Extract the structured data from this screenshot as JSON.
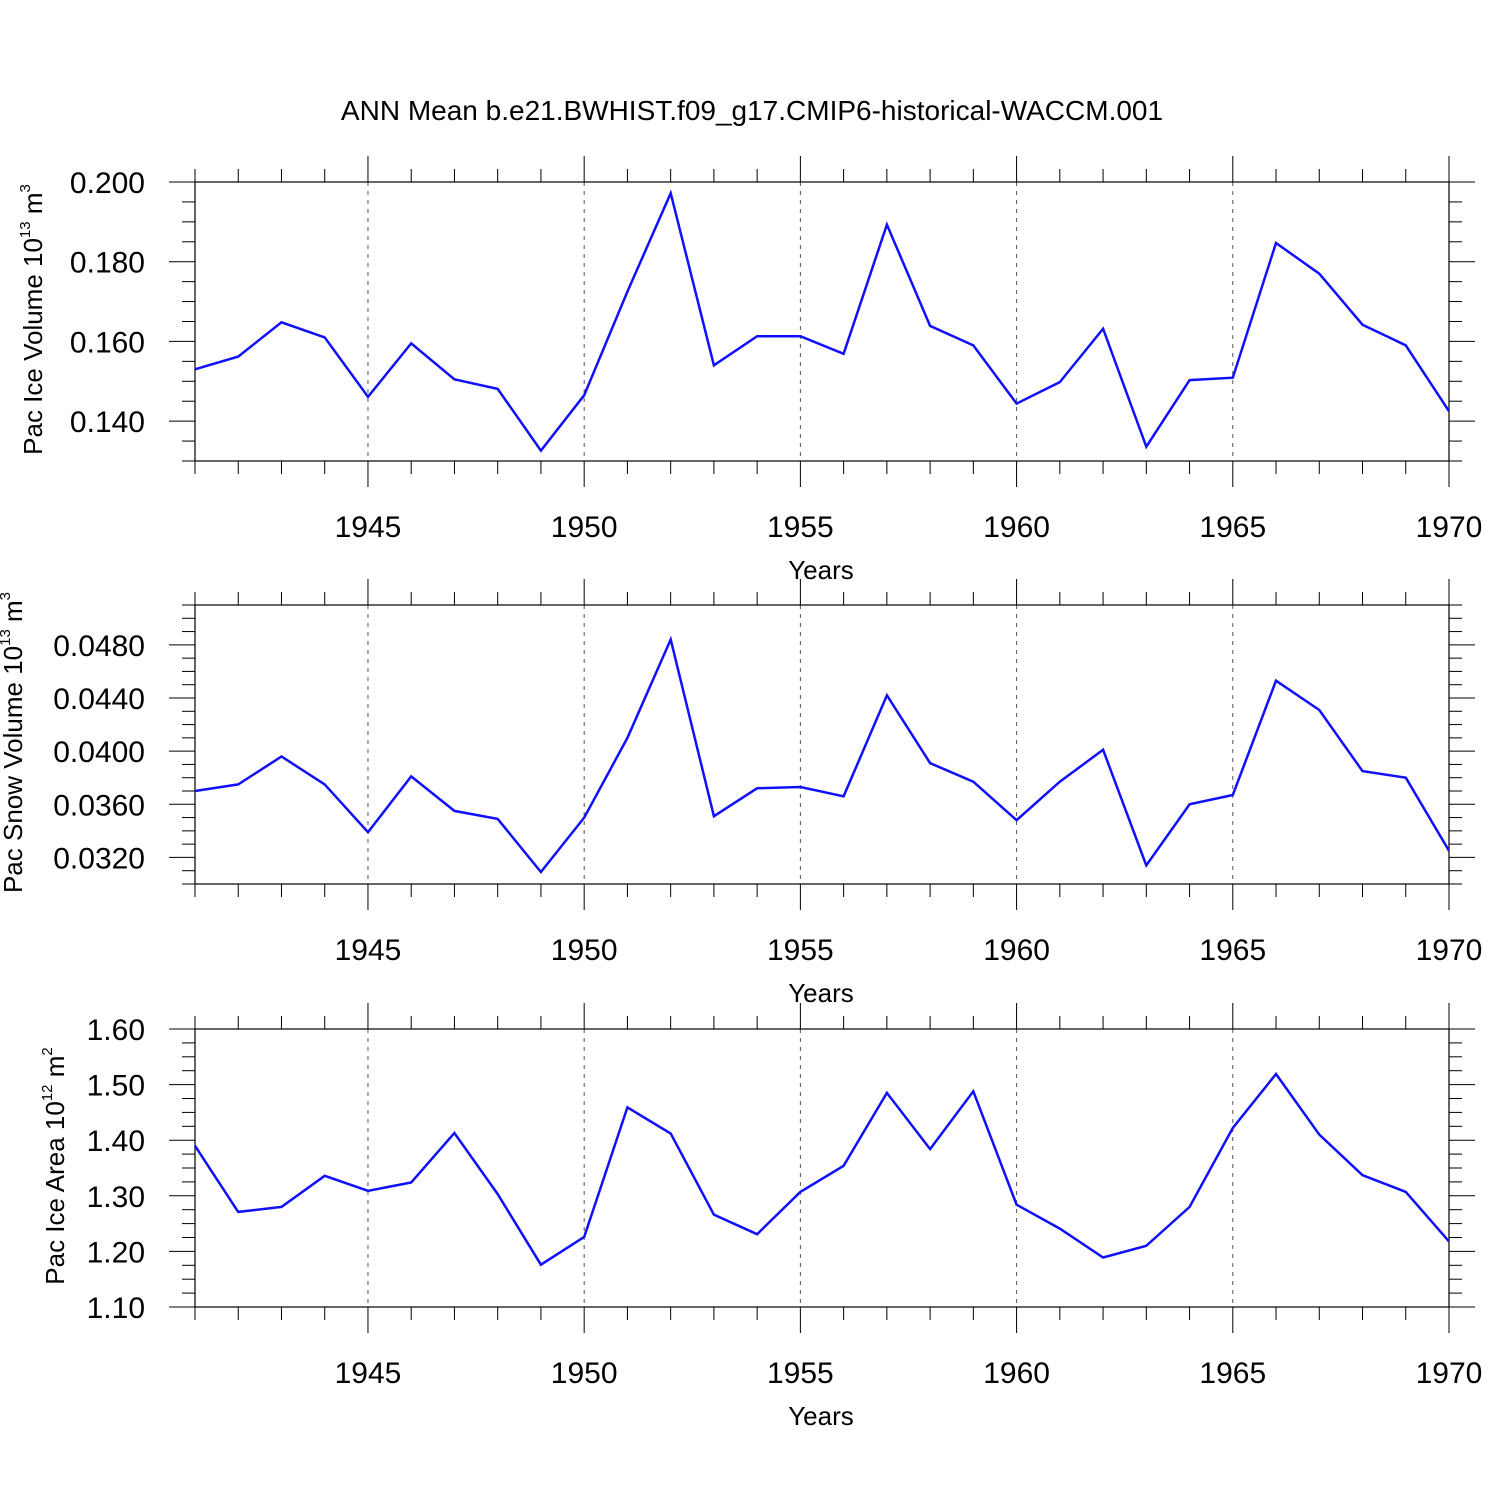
{
  "title": "ANN Mean b.e21.BWHIST.f09_g17.CMIP6-historical-WACCM.001",
  "colors": {
    "line": "#1010ff",
    "axis": "#000000",
    "grid": "#555555"
  },
  "chart_data": [
    {
      "type": "line",
      "ylabel": {
        "text": "Pac Ice Volume 10",
        "sup": "13",
        "unit": " m",
        "unit_sup": "3"
      },
      "xlabel": "Years",
      "xlim": [
        1941,
        1970
      ],
      "ylim": [
        0.13,
        0.2
      ],
      "yticks": [
        0.14,
        0.16,
        0.18,
        0.2
      ],
      "ytick_labels": [
        "0.140",
        "0.160",
        "0.180",
        "0.200"
      ],
      "xticks": [
        1945,
        1950,
        1955,
        1960,
        1965,
        1970
      ],
      "xtick_labels": [
        "1945",
        "1950",
        "1955",
        "1960",
        "1965",
        "1970"
      ],
      "grid_x": [
        1945,
        1950,
        1955,
        1960,
        1965
      ],
      "x": [
        1941,
        1942,
        1943,
        1944,
        1945,
        1946,
        1947,
        1948,
        1949,
        1950,
        1951,
        1952,
        1953,
        1954,
        1955,
        1956,
        1957,
        1958,
        1959,
        1960,
        1961,
        1962,
        1963,
        1964,
        1965,
        1966,
        1967,
        1968,
        1969,
        1970
      ],
      "values": [
        0.153,
        0.1562,
        0.1648,
        0.161,
        0.1461,
        0.1595,
        0.1505,
        0.1481,
        0.1326,
        0.1465,
        0.1725,
        0.1972,
        0.154,
        0.1613,
        0.1613,
        0.1569,
        0.1893,
        0.1639,
        0.159,
        0.1444,
        0.1498,
        0.1632,
        0.1336,
        0.1503,
        0.1509,
        0.1847,
        0.177,
        0.1642,
        0.159,
        0.1425
      ]
    },
    {
      "type": "line",
      "ylabel": {
        "text": "Pac Snow Volume 10",
        "sup": "13",
        "unit": " m",
        "unit_sup": "3"
      },
      "xlabel": "Years",
      "xlim": [
        1941,
        1970
      ],
      "ylim": [
        0.03,
        0.051
      ],
      "yticks": [
        0.032,
        0.036,
        0.04,
        0.044,
        0.048
      ],
      "ytick_labels": [
        "0.0320",
        "0.0360",
        "0.0400",
        "0.0440",
        "0.0480"
      ],
      "xticks": [
        1945,
        1950,
        1955,
        1960,
        1965,
        1970
      ],
      "xtick_labels": [
        "1945",
        "1950",
        "1955",
        "1960",
        "1965",
        "1970"
      ],
      "grid_x": [
        1945,
        1950,
        1955,
        1960,
        1965
      ],
      "x": [
        1941,
        1942,
        1943,
        1944,
        1945,
        1946,
        1947,
        1948,
        1949,
        1950,
        1951,
        1952,
        1953,
        1954,
        1955,
        1956,
        1957,
        1958,
        1959,
        1960,
        1961,
        1962,
        1963,
        1964,
        1965,
        1966,
        1967,
        1968,
        1969,
        1970
      ],
      "values": [
        0.037,
        0.0375,
        0.0396,
        0.0375,
        0.0339,
        0.0381,
        0.0355,
        0.0349,
        0.0309,
        0.035,
        0.041,
        0.0484,
        0.0351,
        0.0372,
        0.0373,
        0.0366,
        0.0442,
        0.0391,
        0.0377,
        0.0348,
        0.0377,
        0.0401,
        0.0314,
        0.036,
        0.0367,
        0.0453,
        0.0431,
        0.0385,
        0.038,
        0.0325
      ]
    },
    {
      "type": "line",
      "ylabel": {
        "text": "Pac Ice Area 10",
        "sup": "12",
        "unit": " m",
        "unit_sup": "2"
      },
      "xlabel": "Years",
      "xlim": [
        1941,
        1970
      ],
      "ylim": [
        1.1,
        1.6
      ],
      "yticks": [
        1.1,
        1.2,
        1.3,
        1.4,
        1.5,
        1.6
      ],
      "ytick_labels": [
        "1.10",
        "1.20",
        "1.30",
        "1.40",
        "1.50",
        "1.60"
      ],
      "xticks": [
        1945,
        1950,
        1955,
        1960,
        1965,
        1970
      ],
      "xtick_labels": [
        "1945",
        "1950",
        "1955",
        "1960",
        "1965",
        "1970"
      ],
      "grid_x": [
        1945,
        1950,
        1955,
        1960,
        1965
      ],
      "x": [
        1941,
        1942,
        1943,
        1944,
        1945,
        1946,
        1947,
        1948,
        1949,
        1950,
        1951,
        1952,
        1953,
        1954,
        1955,
        1956,
        1957,
        1958,
        1959,
        1960,
        1961,
        1962,
        1963,
        1964,
        1965,
        1966,
        1967,
        1968,
        1969,
        1970
      ],
      "values": [
        1.39,
        1.271,
        1.28,
        1.336,
        1.309,
        1.324,
        1.413,
        1.303,
        1.176,
        1.226,
        1.459,
        1.412,
        1.266,
        1.231,
        1.307,
        1.354,
        1.485,
        1.384,
        1.488,
        1.284,
        1.241,
        1.189,
        1.21,
        1.28,
        1.422,
        1.519,
        1.41,
        1.337,
        1.307,
        1.218
      ]
    }
  ]
}
